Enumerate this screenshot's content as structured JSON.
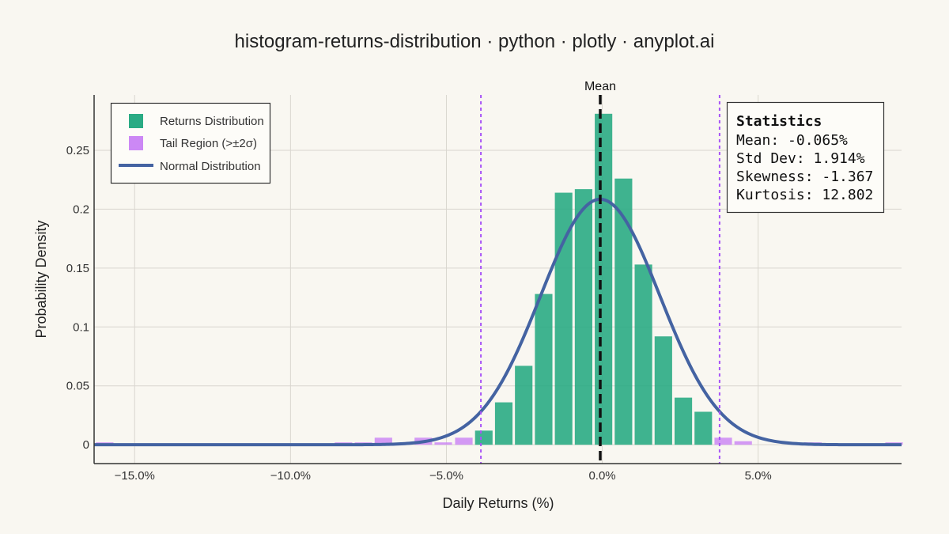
{
  "chart_data": {
    "type": "bar",
    "title": "histogram-returns-distribution · python · plotly · anyplot.ai",
    "xlabel": "Daily Returns (%)",
    "ylabel": "Probability Density",
    "xlim": [
      -16.3,
      9.6
    ],
    "ylim": [
      -0.016,
      0.297
    ],
    "grid": true,
    "legend_position": "top-left",
    "x_ticks": [
      {
        "value": -15,
        "label": "−15.0%"
      },
      {
        "value": -10,
        "label": "−10.0%"
      },
      {
        "value": -5,
        "label": "−5.0%"
      },
      {
        "value": 0,
        "label": "0.0%"
      },
      {
        "value": 5,
        "label": "5.0%"
      }
    ],
    "y_ticks": [
      {
        "value": 0,
        "label": "0"
      },
      {
        "value": 0.05,
        "label": "0.05"
      },
      {
        "value": 0.1,
        "label": "0.1"
      },
      {
        "value": 0.15,
        "label": "0.15"
      },
      {
        "value": 0.2,
        "label": "0.2"
      },
      {
        "value": 0.25,
        "label": "0.25"
      }
    ],
    "bin_width": 0.638,
    "series": [
      {
        "name": "Returns Distribution",
        "color": "#2aab84",
        "bars": [
          {
            "x": -3.8,
            "y": 0.012
          },
          {
            "x": -3.16,
            "y": 0.036
          },
          {
            "x": -2.52,
            "y": 0.067
          },
          {
            "x": -1.88,
            "y": 0.128
          },
          {
            "x": -1.24,
            "y": 0.214
          },
          {
            "x": -0.6,
            "y": 0.217
          },
          {
            "x": 0.04,
            "y": 0.281
          },
          {
            "x": 0.68,
            "y": 0.226
          },
          {
            "x": 1.32,
            "y": 0.153
          },
          {
            "x": 1.96,
            "y": 0.092
          },
          {
            "x": 2.6,
            "y": 0.04
          },
          {
            "x": 3.24,
            "y": 0.028
          }
        ]
      },
      {
        "name": "Tail Region (>±2σ)",
        "color": "#cc88f5",
        "bars": [
          {
            "x": -15.96,
            "y": 0.002
          },
          {
            "x": -8.3,
            "y": 0.002
          },
          {
            "x": -7.66,
            "y": 0.002
          },
          {
            "x": -7.02,
            "y": 0.006
          },
          {
            "x": -5.74,
            "y": 0.006
          },
          {
            "x": -5.1,
            "y": 0.002
          },
          {
            "x": -4.44,
            "y": 0.006
          },
          {
            "x": 3.88,
            "y": 0.006
          },
          {
            "x": 4.52,
            "y": 0.003
          },
          {
            "x": 6.76,
            "y": 0.002
          },
          {
            "x": 9.36,
            "y": 0.002
          }
        ]
      },
      {
        "name": "Normal Distribution",
        "color": "#4463a2",
        "mean": -0.065,
        "std": 1.914
      }
    ],
    "lines": [
      {
        "x": -0.065,
        "style": "dashed",
        "color": "#111111",
        "label": "Mean"
      },
      {
        "x": -3.893,
        "style": "dotted",
        "color": "#a855f7"
      },
      {
        "x": 3.763,
        "style": "dotted",
        "color": "#a855f7"
      }
    ],
    "stats_box": {
      "title": "Statistics",
      "lines": [
        "Mean: -0.065%",
        "Std Dev: 1.914%",
        "Skewness: -1.367",
        "Kurtosis: 12.802"
      ]
    }
  }
}
